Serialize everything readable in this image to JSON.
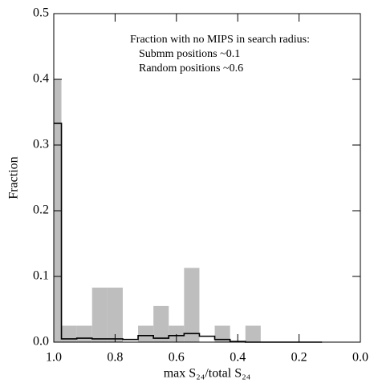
{
  "chart_data": {
    "type": "histogram",
    "xlabel": "max S₂₄/total S₂₄",
    "ylabel": "Fraction",
    "annotations": [
      "Fraction with no MIPS in search radius:",
      "Submm positions ~0.1",
      "Random positions ~0.6"
    ],
    "xlim": [
      1.0,
      0.0
    ],
    "ylim": [
      0,
      0.5
    ],
    "xticks": [
      {
        "value": 1,
        "label": "1.0"
      },
      0.8,
      0.6,
      0.4,
      0.2,
      {
        "value": 0,
        "label": "0.0"
      }
    ],
    "yticks": [
      {
        "value": 0,
        "label": "0.0"
      },
      0.1,
      0.2,
      0.3,
      0.4,
      0.5
    ],
    "bins": [
      1.0,
      0.975,
      0.925,
      0.875,
      0.825,
      0.775,
      0.725,
      0.675,
      0.625,
      0.575,
      0.525,
      0.475,
      0.425,
      0.375,
      0.325,
      0.275
    ],
    "values": [
      0.4,
      0.025,
      0.025,
      0.083,
      0.083,
      0,
      0.025,
      0.055,
      0.025,
      0.113,
      0,
      0.025,
      0,
      0.025,
      0
    ],
    "color": "#bebebe",
    "step_line": {
      "color": "#000000",
      "x": [
        1.0,
        0.975,
        0.925,
        0.875,
        0.825,
        0.775,
        0.725,
        0.675,
        0.625,
        0.575,
        0.525,
        0.475,
        0.425,
        0.375,
        0.125
      ],
      "values": [
        0.333,
        0.005,
        0.006,
        0.005,
        0.005,
        0.004,
        0.01,
        0.006,
        0.01,
        0.013,
        0.009,
        0.004,
        0.001,
        0,
        0
      ]
    }
  }
}
